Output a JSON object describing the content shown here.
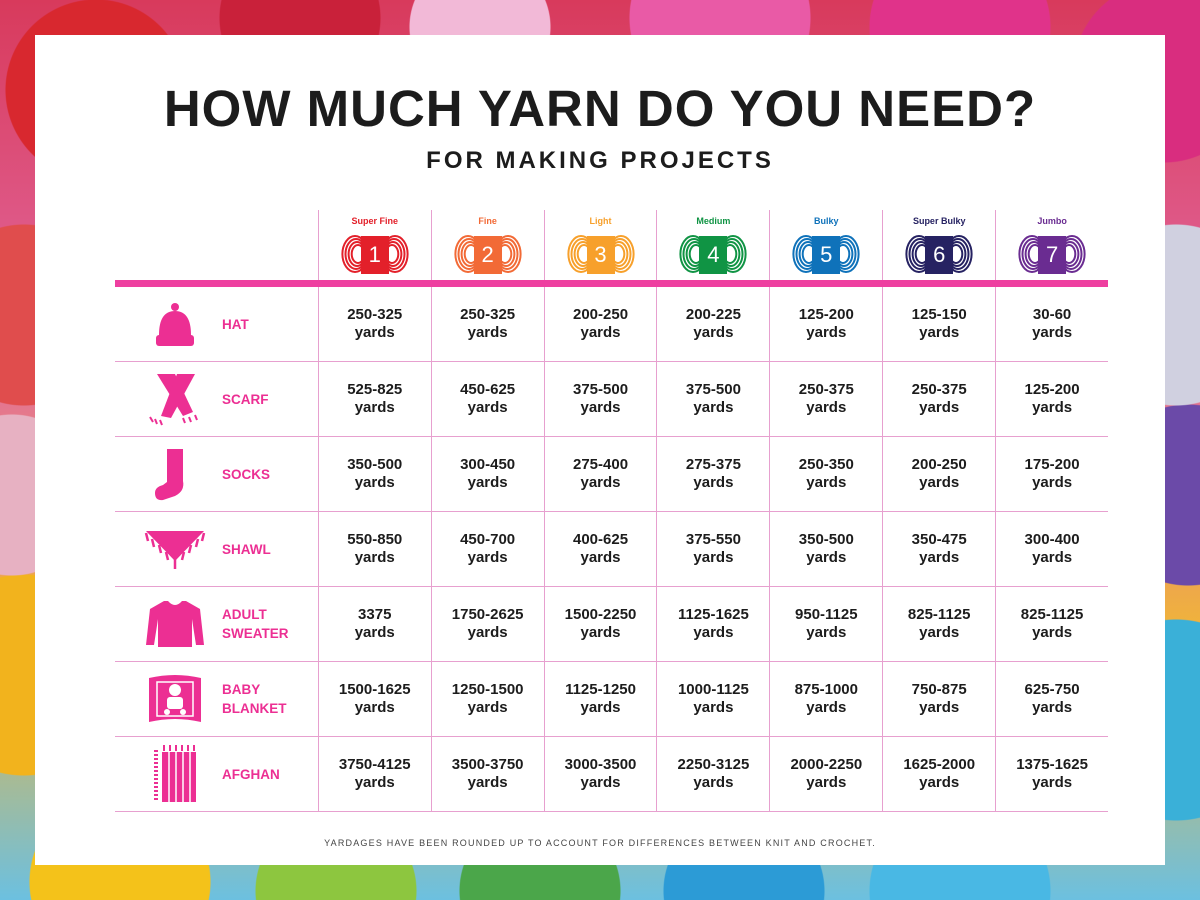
{
  "title": "HOW MUCH YARN DO YOU NEED?",
  "subtitle": "FOR MAKING PROJECTS",
  "weights": [
    {
      "name": "Super Fine",
      "number": "1",
      "color": "#e3202a"
    },
    {
      "name": "Fine",
      "number": "2",
      "color": "#f26a36"
    },
    {
      "name": "Light",
      "number": "3",
      "color": "#f7a02b"
    },
    {
      "name": "Medium",
      "number": "4",
      "color": "#109444"
    },
    {
      "name": "Bulky",
      "number": "5",
      "color": "#0f72ba"
    },
    {
      "name": "Super Bulky",
      "number": "6",
      "color": "#262262"
    },
    {
      "name": "Jumbo",
      "number": "7",
      "color": "#6a2c91"
    }
  ],
  "unit": "yards",
  "accent_color": "#ec2f93",
  "projects": [
    {
      "label": "HAT",
      "icon": "hat-icon",
      "values": [
        "250-325",
        "250-325",
        "200-250",
        "200-225",
        "125-200",
        "125-150",
        "30-60"
      ]
    },
    {
      "label": "SCARF",
      "icon": "scarf-icon",
      "values": [
        "525-825",
        "450-625",
        "375-500",
        "375-500",
        "250-375",
        "250-375",
        "125-200"
      ]
    },
    {
      "label": "SOCKS",
      "icon": "sock-icon",
      "values": [
        "350-500",
        "300-450",
        "275-400",
        "275-375",
        "250-350",
        "200-250",
        "175-200"
      ]
    },
    {
      "label": "SHAWL",
      "icon": "shawl-icon",
      "values": [
        "550-850",
        "450-700",
        "400-625",
        "375-550",
        "350-500",
        "350-475",
        "300-400"
      ]
    },
    {
      "label": "ADULT\nSWEATER",
      "icon": "sweater-icon",
      "values": [
        "3375",
        "1750-2625",
        "1500-2250",
        "1125-1625",
        "950-1125",
        "825-1125",
        "825-1125"
      ]
    },
    {
      "label": "BABY\nBLANKET",
      "icon": "baby-blanket-icon",
      "values": [
        "1500-1625",
        "1250-1500",
        "1125-1250",
        "1000-1125",
        "875-1000",
        "750-875",
        "625-750"
      ]
    },
    {
      "label": "AFGHAN",
      "icon": "afghan-icon",
      "values": [
        "3750-4125",
        "3500-3750",
        "3000-3500",
        "2250-3125",
        "2000-2250",
        "1625-2000",
        "1375-1625"
      ]
    }
  ],
  "footnote": "YARDAGES HAVE BEEN ROUNDED UP TO ACCOUNT FOR DIFFERENCES BETWEEN KNIT AND CROCHET."
}
